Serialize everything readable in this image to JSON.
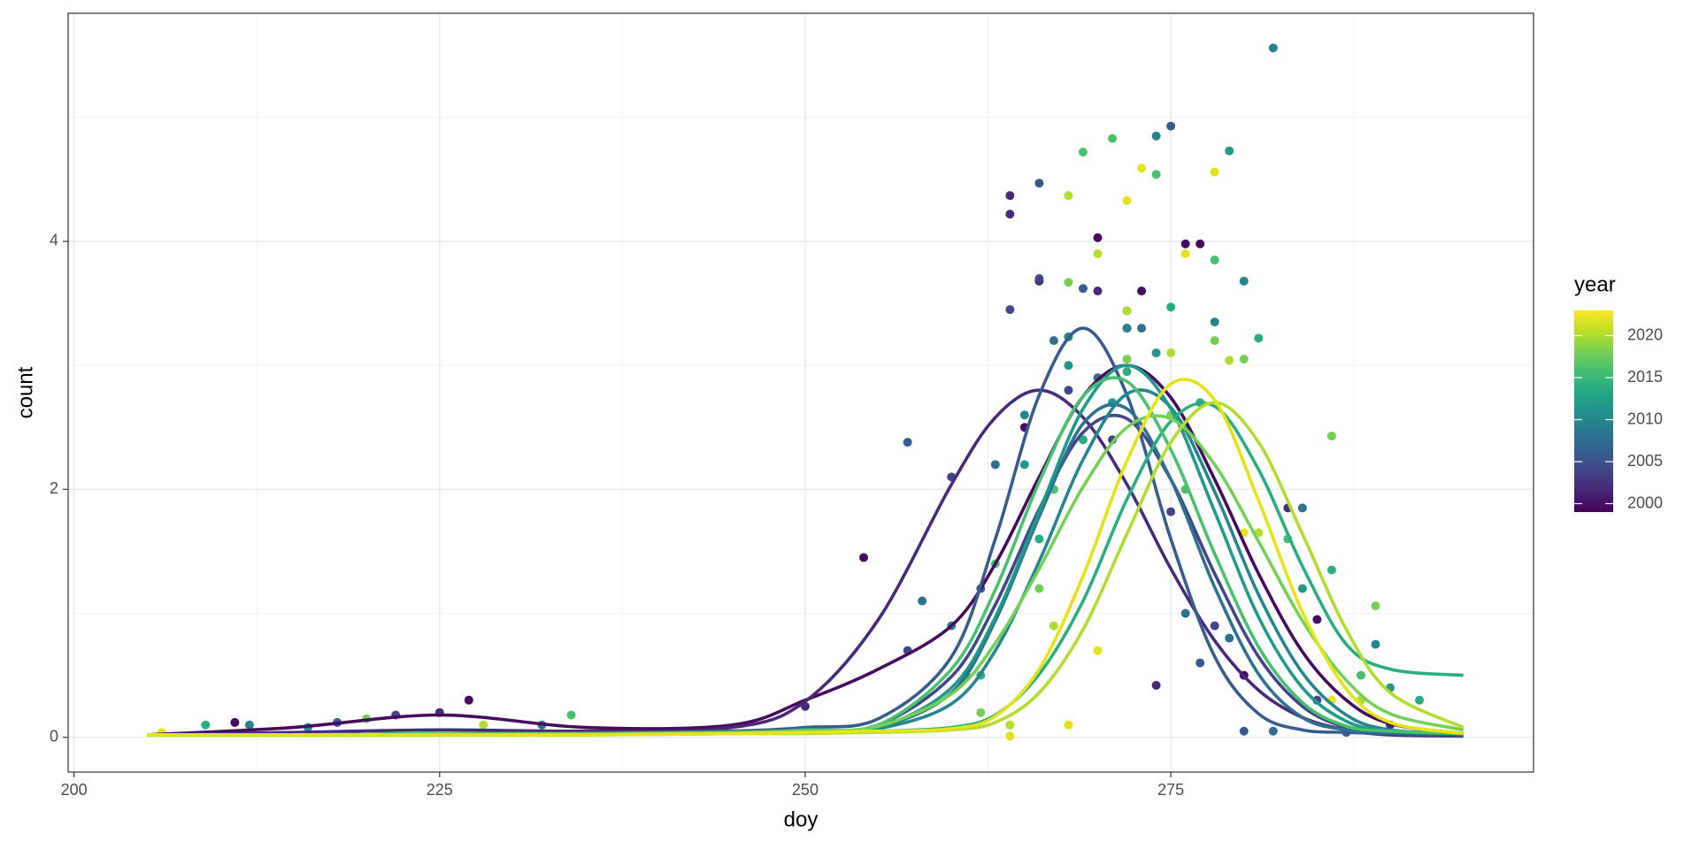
{
  "chart_data": {
    "type": "scatter_smooth",
    "x_label": "doy",
    "y_label": "count",
    "xlim": [
      199.6,
      299.8
    ],
    "ylim": [
      -0.28,
      5.84
    ],
    "xticks": [
      200,
      225,
      250,
      275
    ],
    "yticks": [
      0,
      2,
      4
    ],
    "x_minor_grid": [
      212.5,
      237.5,
      262.5,
      287.5
    ],
    "y_minor_grid": [
      1,
      3,
      5
    ],
    "grid": true,
    "x": [
      205,
      215,
      225,
      235,
      245,
      250,
      255,
      260,
      263,
      266,
      269,
      272,
      275,
      278,
      281,
      284,
      287,
      290,
      295
    ],
    "colorbar": {
      "title": "year",
      "lim": [
        1999,
        2023
      ],
      "ticks": [
        2000,
        2005,
        2010,
        2015,
        2020
      ],
      "colors": [
        "#440154",
        "#482475",
        "#414487",
        "#355f8d",
        "#2a788e",
        "#21918c",
        "#22a884",
        "#44bf70",
        "#7ad151",
        "#bddf26",
        "#fde725"
      ]
    },
    "series": [
      {
        "color": "#460b5e",
        "values": [
          0.02,
          0.08,
          0.18,
          0.08,
          0.1,
          0.3,
          0.55,
          0.9,
          1.4,
          2.1,
          2.75,
          3.0,
          2.74,
          2.08,
          1.32,
          0.69,
          0.3,
          0.11,
          0.03
        ],
        "points_x": [
          211,
          227,
          254,
          265,
          270,
          273,
          276,
          277,
          280,
          285
        ],
        "points_y": [
          0.12,
          0.3,
          1.45,
          2.5,
          4.03,
          3.6,
          3.98,
          3.98,
          0.5,
          0.95
        ]
      },
      {
        "color": "#472a7a",
        "values": [
          0.02,
          0.04,
          0.06,
          0.05,
          0.08,
          0.29,
          0.95,
          2.04,
          2.58,
          2.8,
          2.58,
          2.04,
          1.36,
          0.78,
          0.38,
          0.16,
          0.06,
          0.02,
          0.01
        ],
        "points_x": [
          225,
          250,
          264,
          264,
          266,
          270,
          272,
          274,
          283,
          290
        ],
        "points_y": [
          0.2,
          0.25,
          4.37,
          4.22,
          3.68,
          3.6,
          3.3,
          0.42,
          1.85,
          0.1
        ]
      },
      {
        "color": "#404688",
        "values": [
          0.02,
          0.02,
          0.03,
          0.03,
          0.04,
          0.05,
          0.1,
          0.49,
          1.07,
          1.84,
          2.46,
          2.57,
          2.08,
          1.32,
          0.65,
          0.25,
          0.08,
          0.03,
          0.01
        ],
        "points_x": [
          222,
          257,
          260,
          264,
          266,
          268,
          271,
          275,
          278,
          285
        ],
        "points_y": [
          0.18,
          0.7,
          2.1,
          3.45,
          3.7,
          2.8,
          2.4,
          1.82,
          0.9,
          0.3
        ]
      },
      {
        "color": "#375b8d",
        "values": [
          0.02,
          0.02,
          0.03,
          0.03,
          0.05,
          0.08,
          0.15,
          0.65,
          1.6,
          2.76,
          3.3,
          2.76,
          1.6,
          0.65,
          0.19,
          0.06,
          0.04,
          0.03,
          0.02
        ],
        "points_x": [
          218,
          257,
          262,
          266,
          269,
          272,
          275,
          277,
          280,
          287
        ],
        "points_y": [
          0.12,
          2.38,
          1.2,
          4.47,
          3.62,
          3.44,
          4.93,
          0.6,
          0.05,
          0.04
        ]
      },
      {
        "color": "#2d718e",
        "values": [
          0.02,
          0.02,
          0.02,
          0.03,
          0.04,
          0.05,
          0.08,
          0.36,
          0.94,
          1.78,
          2.53,
          2.65,
          2.08,
          1.21,
          0.51,
          0.16,
          0.06,
          0.04,
          0.03
        ],
        "points_x": [
          232,
          258,
          263,
          267,
          270,
          273,
          276,
          279,
          282,
          284
        ],
        "points_y": [
          0.1,
          1.1,
          2.2,
          3.2,
          2.9,
          3.3,
          1.0,
          0.8,
          0.05,
          1.85
        ]
      },
      {
        "color": "#25858e",
        "values": [
          0.02,
          0.02,
          0.02,
          0.03,
          0.04,
          0.05,
          0.07,
          0.27,
          0.7,
          1.42,
          2.24,
          2.77,
          2.66,
          1.98,
          1.15,
          0.52,
          0.18,
          0.06,
          0.03
        ],
        "points_x": [
          212,
          260,
          265,
          268,
          272,
          274,
          278,
          280,
          282,
          289
        ],
        "points_y": [
          0.1,
          0.9,
          2.6,
          3.23,
          3.3,
          4.85,
          3.35,
          3.68,
          5.56,
          0.75
        ]
      },
      {
        "color": "#1f9a8a",
        "values": [
          0.02,
          0.02,
          0.03,
          0.03,
          0.04,
          0.05,
          0.08,
          0.4,
          0.97,
          1.82,
          2.65,
          3.0,
          2.65,
          1.82,
          0.97,
          0.4,
          0.13,
          0.05,
          0.03
        ],
        "points_x": [
          216,
          261,
          265,
          268,
          271,
          274,
          276,
          279,
          284,
          290
        ],
        "points_y": [
          0.08,
          0.5,
          2.2,
          3.0,
          2.7,
          3.1,
          2.5,
          4.73,
          1.2,
          0.4
        ]
      },
      {
        "color": "#2aae80",
        "values": [
          0.02,
          0.02,
          0.02,
          0.02,
          0.03,
          0.04,
          0.05,
          0.08,
          0.18,
          0.51,
          1.1,
          1.92,
          2.55,
          2.67,
          2.16,
          1.38,
          0.75,
          0.55,
          0.5
        ],
        "points_x": [
          209,
          262,
          266,
          269,
          272,
          275,
          277,
          281,
          286,
          292
        ],
        "points_y": [
          0.1,
          0.5,
          1.6,
          2.4,
          2.95,
          3.47,
          2.7,
          3.22,
          1.35,
          0.3
        ]
      },
      {
        "color": "#48c16e",
        "values": [
          0.02,
          0.02,
          0.03,
          0.03,
          0.04,
          0.06,
          0.1,
          0.55,
          1.19,
          2.06,
          2.75,
          2.87,
          2.32,
          1.48,
          0.73,
          0.28,
          0.09,
          0.05,
          0.03
        ],
        "points_x": [
          234,
          263,
          267,
          269,
          271,
          274,
          276,
          278,
          283,
          288
        ],
        "points_y": [
          0.18,
          1.4,
          2.0,
          4.72,
          4.83,
          4.54,
          2.0,
          3.85,
          1.6,
          0.5
        ]
      },
      {
        "color": "#74d055",
        "values": [
          0.02,
          0.02,
          0.02,
          0.03,
          0.04,
          0.05,
          0.09,
          0.35,
          0.76,
          1.36,
          2.02,
          2.5,
          2.57,
          2.2,
          1.58,
          0.94,
          0.46,
          0.19,
          0.06
        ],
        "points_x": [
          220,
          262,
          266,
          268,
          272,
          275,
          278,
          280,
          286,
          289
        ],
        "points_y": [
          0.15,
          0.2,
          1.2,
          3.67,
          3.05,
          2.6,
          3.2,
          3.05,
          2.43,
          1.06
        ]
      },
      {
        "color": "#b0dd2f",
        "values": [
          0.02,
          0.02,
          0.02,
          0.02,
          0.03,
          0.03,
          0.04,
          0.06,
          0.12,
          0.36,
          0.87,
          1.64,
          2.38,
          2.7,
          2.38,
          1.64,
          0.87,
          0.36,
          0.08
        ],
        "points_x": [
          228,
          264,
          267,
          268,
          270,
          272,
          275,
          279,
          281,
          288
        ],
        "points_y": [
          0.1,
          0.1,
          0.9,
          4.37,
          3.9,
          3.44,
          3.1,
          3.04,
          1.65,
          0.3
        ]
      },
      {
        "color": "#e5e419",
        "values": [
          0.02,
          0.02,
          0.02,
          0.02,
          0.03,
          0.04,
          0.05,
          0.07,
          0.17,
          0.55,
          1.3,
          2.23,
          2.85,
          2.72,
          1.91,
          1.01,
          0.39,
          0.12,
          0.03
        ],
        "points_x": [
          206,
          264,
          268,
          270,
          272,
          273,
          276,
          278,
          280,
          286
        ],
        "points_y": [
          0.04,
          0.01,
          0.1,
          0.7,
          4.33,
          4.59,
          3.9,
          4.56,
          1.65,
          0.3
        ]
      }
    ]
  }
}
